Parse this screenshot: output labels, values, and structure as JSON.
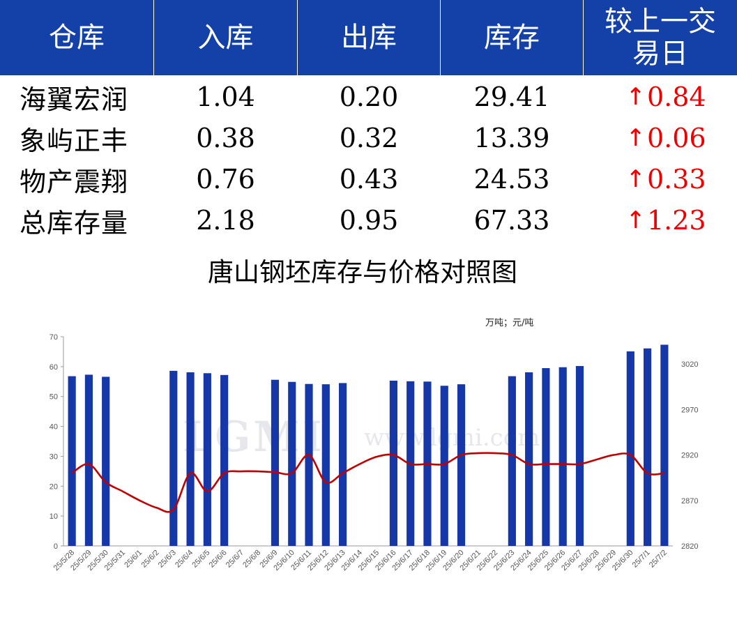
{
  "table": {
    "headers": [
      "仓库",
      "入库",
      "出库",
      "库存",
      "较上一交易日"
    ],
    "header_last_lines": [
      "较上一交",
      "易日"
    ],
    "rows": [
      {
        "name": "海翼宏润",
        "in": "1.04",
        "out": "0.20",
        "stock": "29.41",
        "arrow": "↑",
        "change": "0.84"
      },
      {
        "name": "象屿正丰",
        "in": "0.38",
        "out": "0.32",
        "stock": "13.39",
        "arrow": "↑",
        "change": "0.06"
      },
      {
        "name": "物产震翔",
        "in": "0.76",
        "out": "0.43",
        "stock": "24.53",
        "arrow": "↑",
        "change": "0.33"
      },
      {
        "name": "总库存量",
        "in": "2.18",
        "out": "0.95",
        "stock": "67.33",
        "arrow": "↑",
        "change": "1.23"
      }
    ]
  },
  "watermark": {
    "logo": "LGMI",
    "url": "www.lgmi.com"
  },
  "chart_data": {
    "type": "bar+line",
    "title": "唐山钢坯库存与价格对照图",
    "units": "万吨；元/吨",
    "categories": [
      "25/5/28",
      "25/5/29",
      "25/5/30",
      "25/5/31",
      "25/6/1",
      "25/6/2",
      "25/6/3",
      "25/6/4",
      "25/6/5",
      "25/6/6",
      "25/6/7",
      "25/6/8",
      "25/6/9",
      "25/6/10",
      "25/6/11",
      "25/6/12",
      "25/6/13",
      "25/6/14",
      "25/6/15",
      "25/6/16",
      "25/6/17",
      "25/6/18",
      "25/6/19",
      "25/6/20",
      "25/6/21",
      "25/6/22",
      "25/6/23",
      "25/6/24",
      "25/6/25",
      "25/6/26",
      "25/6/27",
      "25/6/28",
      "25/6/29",
      "25/6/30",
      "25/7/1",
      "25/7/2"
    ],
    "series": [
      {
        "kind": "bar",
        "axis": "left",
        "color": "#1537a8",
        "values": [
          56.8,
          57.3,
          56.6,
          null,
          null,
          null,
          58.6,
          58.1,
          57.8,
          57.2,
          null,
          null,
          55.6,
          54.9,
          54.2,
          54.1,
          54.5,
          null,
          null,
          55.3,
          55.1,
          55.0,
          53.6,
          54.1,
          null,
          null,
          56.8,
          58.1,
          59.5,
          59.8,
          60.2,
          null,
          null,
          65.1,
          66.1,
          67.33
        ]
      },
      {
        "kind": "line",
        "axis": "right",
        "color": "#c00000",
        "values": [
          2900,
          2910,
          2890,
          2880,
          2870,
          2862,
          2860,
          2900,
          2880,
          2900,
          2902,
          2902,
          2901,
          2900,
          2920,
          2890,
          2900,
          2910,
          2918,
          2920,
          2910,
          2910,
          2910,
          2920,
          2922,
          2922,
          2920,
          2910,
          2910,
          2910,
          2910,
          2915,
          2920,
          2920,
          2900,
          2900
        ]
      }
    ],
    "y_left": {
      "min": 0,
      "max": 70,
      "ticks": [
        0,
        10,
        20,
        30,
        40,
        50,
        60,
        70
      ]
    },
    "y_right": {
      "min": 2820,
      "max": 3050,
      "ticks": [
        2820,
        2870,
        2920,
        2970,
        3020
      ]
    }
  }
}
